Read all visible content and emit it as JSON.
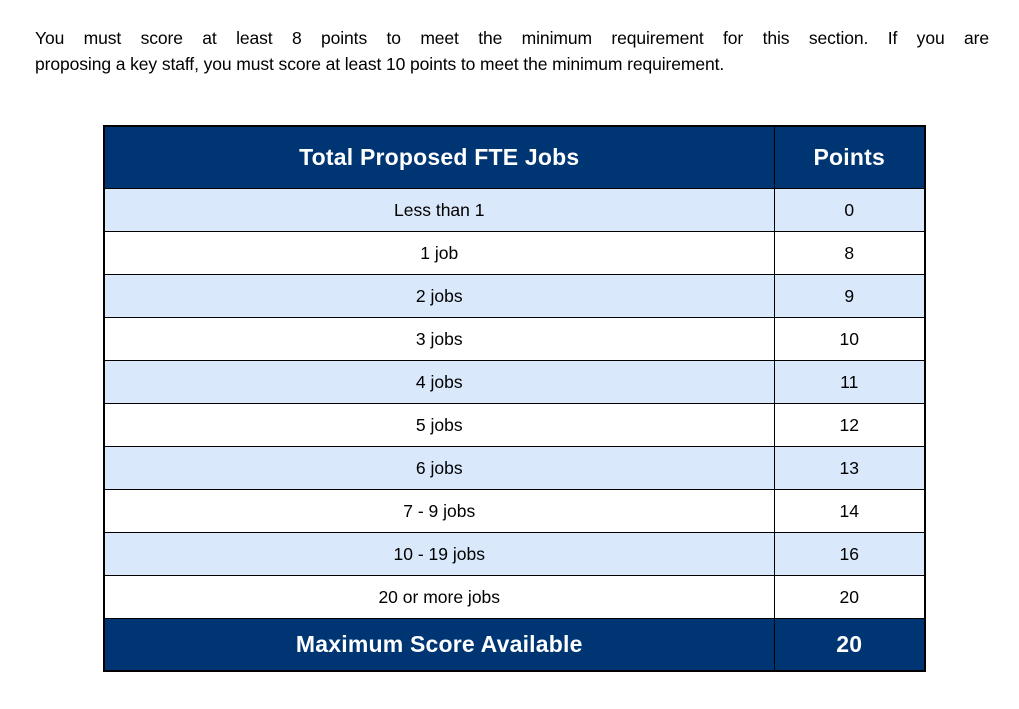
{
  "intro": {
    "line1": "You must score at least 8 points to meet the minimum requirement for this section. If you are",
    "line2": "proposing a key staff, you must score at least 10 points to meet the minimum requirement."
  },
  "table": {
    "header": {
      "jobs_label": "Total Proposed FTE Jobs",
      "points_label": "Points"
    },
    "rows": [
      {
        "jobs": "Less than 1",
        "points": "0"
      },
      {
        "jobs": "1 job",
        "points": "8"
      },
      {
        "jobs": "2 jobs",
        "points": "9"
      },
      {
        "jobs": "3 jobs",
        "points": "10"
      },
      {
        "jobs": "4 jobs",
        "points": "11"
      },
      {
        "jobs": "5 jobs",
        "points": "12"
      },
      {
        "jobs": "6 jobs",
        "points": "13"
      },
      {
        "jobs": "7 - 9 jobs",
        "points": "14"
      },
      {
        "jobs": "10 - 19 jobs",
        "points": "16"
      },
      {
        "jobs": "20 or more jobs",
        "points": "20"
      }
    ],
    "footer": {
      "label": "Maximum Score Available",
      "value": "20"
    }
  },
  "colors": {
    "header_bg": "#003573",
    "stripe_bg": "#d9e8fb",
    "border": "#000000",
    "header_text": "#ffffff",
    "body_text": "#000000"
  }
}
